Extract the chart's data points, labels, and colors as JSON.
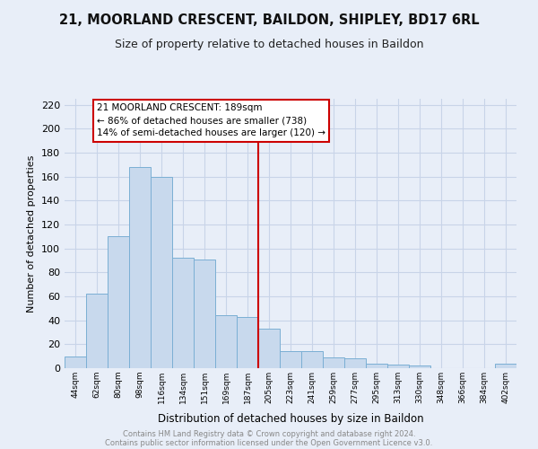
{
  "title1": "21, MOORLAND CRESCENT, BAILDON, SHIPLEY, BD17 6RL",
  "title2": "Size of property relative to detached houses in Baildon",
  "xlabel": "Distribution of detached houses by size in Baildon",
  "ylabel": "Number of detached properties",
  "footer1": "Contains HM Land Registry data © Crown copyright and database right 2024.",
  "footer2": "Contains public sector information licensed under the Open Government Licence v3.0.",
  "bar_labels": [
    "44sqm",
    "62sqm",
    "80sqm",
    "98sqm",
    "116sqm",
    "134sqm",
    "151sqm",
    "169sqm",
    "187sqm",
    "205sqm",
    "223sqm",
    "241sqm",
    "259sqm",
    "277sqm",
    "295sqm",
    "313sqm",
    "330sqm",
    "348sqm",
    "366sqm",
    "384sqm",
    "402sqm"
  ],
  "bar_values": [
    10,
    62,
    110,
    168,
    160,
    92,
    91,
    44,
    43,
    33,
    14,
    14,
    9,
    8,
    4,
    3,
    2,
    0,
    0,
    0,
    4
  ],
  "bar_color": "#c8d9ed",
  "bar_edge_color": "#7bafd4",
  "property_line_x": 8.5,
  "property_line_color": "#cc0000",
  "annotation_title": "21 MOORLAND CRESCENT: 189sqm",
  "annotation_line1": "← 86% of detached houses are smaller (738)",
  "annotation_line2": "14% of semi-detached houses are larger (120) →",
  "annotation_box_color": "#ffffff",
  "annotation_box_edge": "#cc0000",
  "ylim": [
    0,
    225
  ],
  "yticks": [
    0,
    20,
    40,
    60,
    80,
    100,
    120,
    140,
    160,
    180,
    200,
    220
  ],
  "grid_color": "#c8d4e8",
  "background_color": "#e8eef8",
  "plot_bg_color": "#e8eef8",
  "title_fontsize": 10.5,
  "subtitle_fontsize": 9,
  "footer_color": "#888888"
}
